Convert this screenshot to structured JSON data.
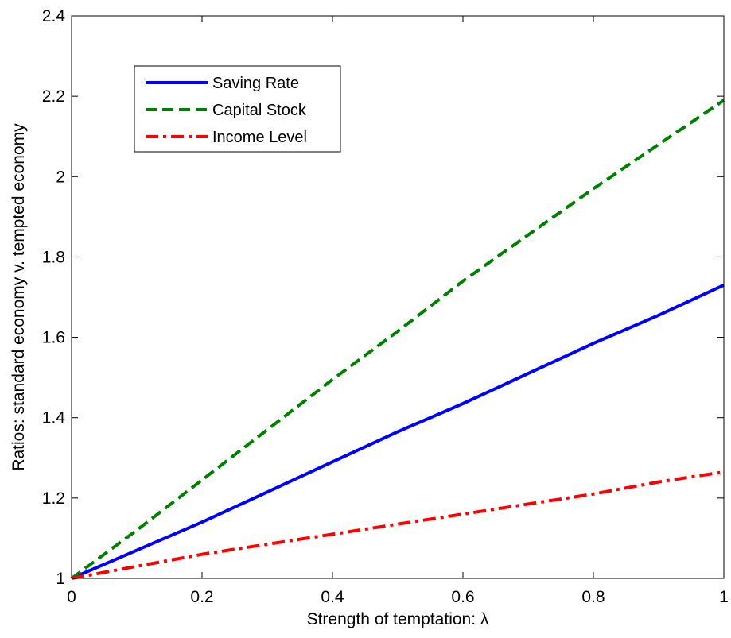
{
  "chart_data": {
    "type": "line",
    "title": "",
    "xlabel": "Strength of temptation: λ",
    "ylabel": "Ratios: standard economy v. tempted economy",
    "xlim": [
      0,
      1
    ],
    "ylim": [
      1,
      2.4
    ],
    "xticks": [
      0,
      0.2,
      0.4,
      0.6,
      0.8,
      1
    ],
    "xtick_labels": [
      "0",
      "0.2",
      "0.4",
      "0.6",
      "0.8",
      "1"
    ],
    "yticks": [
      1,
      1.2,
      1.4,
      1.6,
      1.8,
      2,
      2.2,
      2.4
    ],
    "ytick_labels": [
      "1",
      "1.2",
      "1.4",
      "1.6",
      "1.8",
      "2",
      "2.2",
      "2.4"
    ],
    "grid": false,
    "legend_position": "top-left",
    "x": [
      0,
      0.1,
      0.2,
      0.3,
      0.4,
      0.5,
      0.6,
      0.7,
      0.8,
      0.9,
      1.0
    ],
    "series": [
      {
        "name": "Saving Rate",
        "color": "#0000ff",
        "style": "solid",
        "values": [
          1.0,
          1.07,
          1.14,
          1.215,
          1.29,
          1.365,
          1.435,
          1.51,
          1.585,
          1.655,
          1.73
        ]
      },
      {
        "name": "Capital Stock",
        "color": "#008000",
        "style": "dashed",
        "values": [
          1.0,
          1.12,
          1.245,
          1.37,
          1.495,
          1.615,
          1.74,
          1.855,
          1.97,
          2.08,
          2.19
        ]
      },
      {
        "name": "Income Level",
        "color": "#ff0000",
        "style": "dashdot",
        "values": [
          1.0,
          1.03,
          1.06,
          1.085,
          1.11,
          1.135,
          1.16,
          1.185,
          1.21,
          1.24,
          1.265
        ]
      }
    ]
  }
}
